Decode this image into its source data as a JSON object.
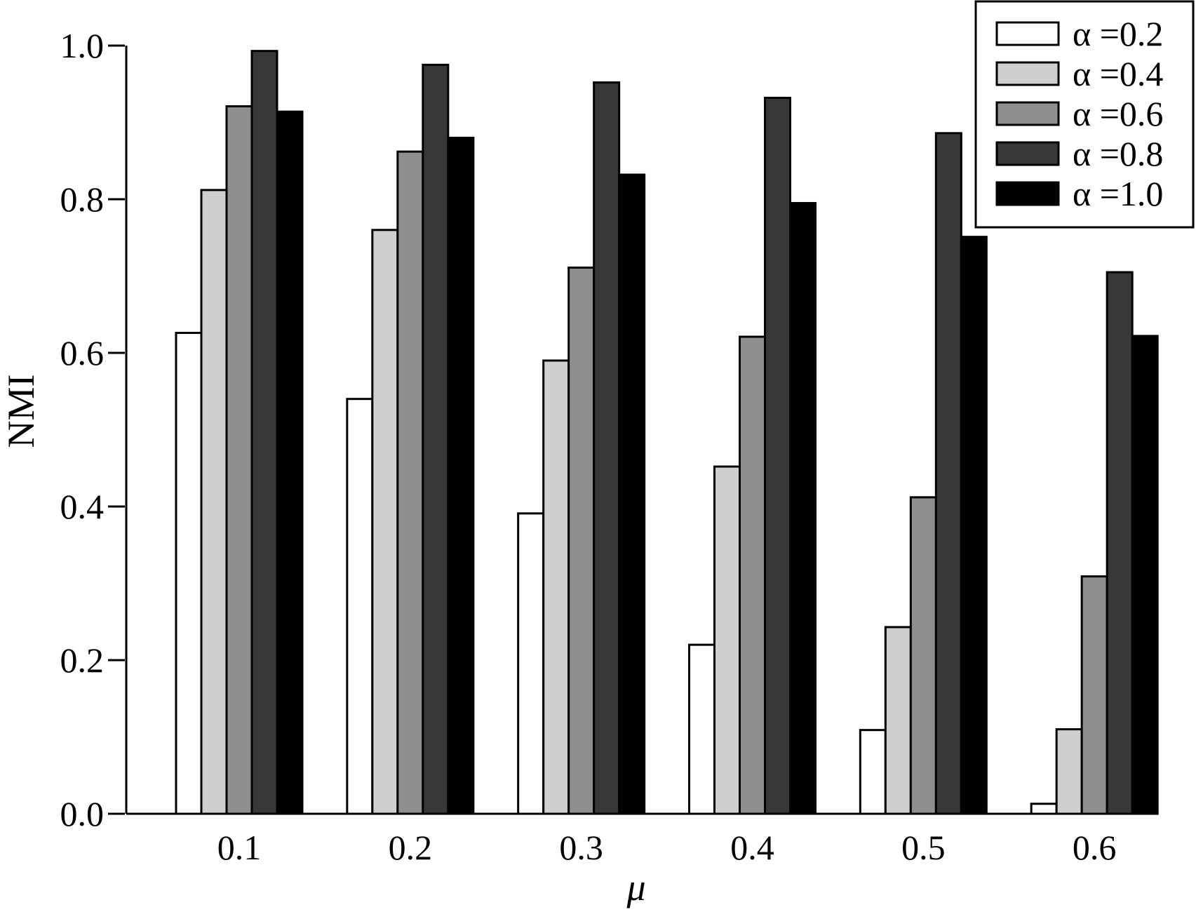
{
  "chart_data": {
    "type": "bar",
    "xlabel": "μ",
    "ylabel": "NMI",
    "ylim": [
      0,
      1
    ],
    "yticks": [
      "0.0",
      "0.2",
      "0.4",
      "0.6",
      "0.8",
      "1.0"
    ],
    "categories": [
      "0.1",
      "0.2",
      "0.3",
      "0.4",
      "0.5",
      "0.6"
    ],
    "legend_position": "top-right",
    "grid": false,
    "series": [
      {
        "name": "α =0.2",
        "fill": "#ffffff",
        "values": [
          0.626,
          0.54,
          0.391,
          0.22,
          0.109,
          0.013
        ]
      },
      {
        "name": "α =0.4",
        "fill": "#cfcfcf",
        "values": [
          0.812,
          0.76,
          0.59,
          0.452,
          0.243,
          0.11
        ]
      },
      {
        "name": "α =0.6",
        "fill": "#8f8f8f",
        "values": [
          0.921,
          0.862,
          0.711,
          0.621,
          0.412,
          0.309
        ]
      },
      {
        "name": "α =0.8",
        "fill": "#383838",
        "values": [
          0.993,
          0.975,
          0.952,
          0.932,
          0.886,
          0.705
        ]
      },
      {
        "name": "α =1.0",
        "fill": "#000000",
        "values": [
          0.914,
          0.88,
          0.832,
          0.795,
          0.751,
          0.622
        ]
      }
    ]
  }
}
